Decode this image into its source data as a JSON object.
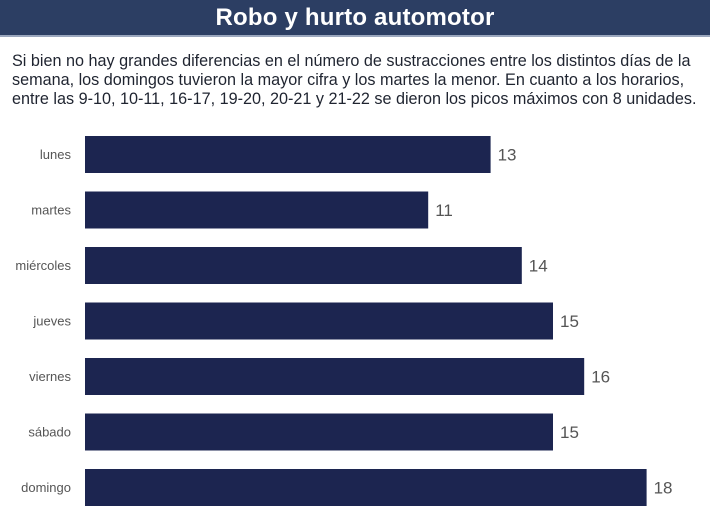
{
  "header": {
    "title": "Robo y hurto automotor"
  },
  "description": "Si bien no hay grandes diferencias en el número de sustracciones entre los distintos días de la semana, los domingos tuvieron la mayor cifra y los martes la menor. En cuanto a los horarios, entre las 9-10, 10-11, 16-17, 19-20, 20-21 y 21-22 se dieron los picos máximos con 8 unidades.",
  "colors": {
    "bar": "#1c2550",
    "header": "#2c3e63",
    "label": "#555555"
  },
  "chart_data": {
    "type": "bar",
    "orientation": "horizontal",
    "categories": [
      "lunes",
      "martes",
      "miércoles",
      "jueves",
      "viernes",
      "sábado",
      "domingo"
    ],
    "values": [
      13,
      11,
      14,
      15,
      16,
      15,
      18
    ],
    "grid": false,
    "data_labels": true
  }
}
